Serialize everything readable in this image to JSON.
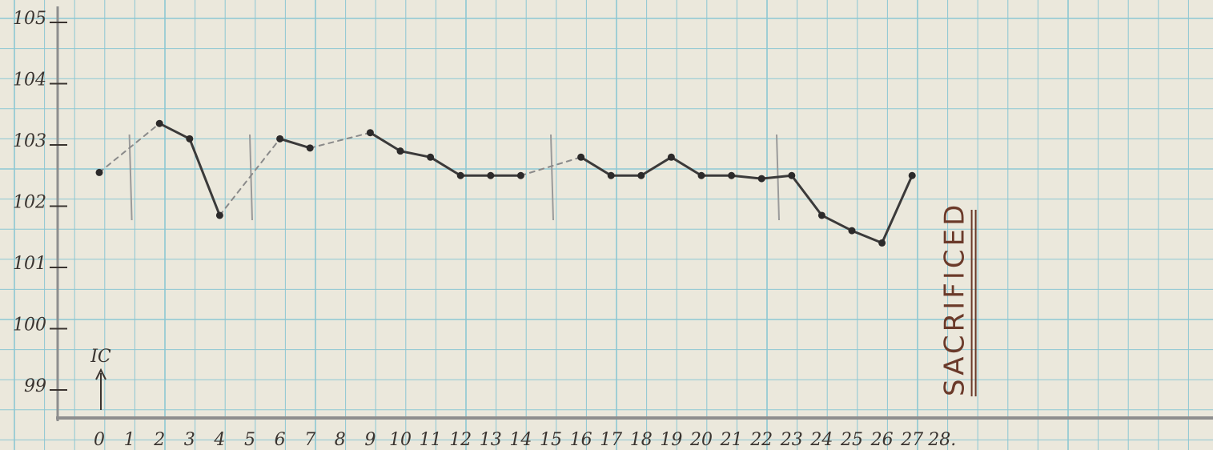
{
  "chart_data": {
    "type": "line",
    "title": "",
    "xlabel": "",
    "ylabel": "",
    "xlim": [
      -1,
      38.6
    ],
    "ylim": [
      98.5,
      105.2
    ],
    "grid": true,
    "x_ticks": [
      "0",
      "1",
      "2",
      "3",
      "4",
      "5",
      "6",
      "7",
      "8",
      "9",
      "10",
      "11",
      "12",
      "13",
      "14",
      "15",
      "16",
      "17",
      "18",
      "19",
      "20",
      "21",
      "22",
      "23",
      "24",
      "25",
      "26",
      "27",
      "28."
    ],
    "y_ticks": [
      {
        "value": 105,
        "label": "105"
      },
      {
        "value": 104,
        "label": "104"
      },
      {
        "value": 103,
        "label": "103"
      },
      {
        "value": 102,
        "label": "102"
      },
      {
        "value": 101,
        "label": "101"
      },
      {
        "value": 100,
        "label": "100"
      },
      {
        "value": 99,
        "label": "99"
      }
    ],
    "series": [
      {
        "points": [
          {
            "x": 0,
            "y": 102.55
          },
          {
            "x": 2,
            "y": 103.35
          },
          {
            "x": 3,
            "y": 103.1
          },
          {
            "x": 4,
            "y": 101.85
          },
          {
            "x": 6,
            "y": 103.1
          },
          {
            "x": 7,
            "y": 102.95
          },
          {
            "x": 9,
            "y": 103.2
          },
          {
            "x": 10,
            "y": 102.9
          },
          {
            "x": 11,
            "y": 102.8
          },
          {
            "x": 12,
            "y": 102.5
          },
          {
            "x": 13,
            "y": 102.5
          },
          {
            "x": 14,
            "y": 102.5
          },
          {
            "x": 16,
            "y": 102.8
          },
          {
            "x": 17,
            "y": 102.5
          },
          {
            "x": 18,
            "y": 102.5
          },
          {
            "x": 19,
            "y": 102.8
          },
          {
            "x": 20,
            "y": 102.5
          },
          {
            "x": 21,
            "y": 102.5
          },
          {
            "x": 22,
            "y": 102.45
          },
          {
            "x": 23,
            "y": 102.5
          },
          {
            "x": 24,
            "y": 101.85
          },
          {
            "x": 25,
            "y": 101.6
          },
          {
            "x": 26,
            "y": 101.4
          },
          {
            "x": 27,
            "y": 102.5
          }
        ],
        "dashed_segments": [
          [
            0,
            2
          ],
          [
            4,
            6
          ],
          [
            7,
            9
          ],
          [
            14,
            16
          ]
        ]
      }
    ],
    "vertical_marks": [
      1,
      5,
      15,
      22.5
    ],
    "annotations": {
      "marker_label": "IC",
      "marker_x": 0,
      "sacrificed_label": "SACRIFICED",
      "sacrificed_x": 28.5
    }
  },
  "colors": {
    "paper": "#ebe8dc",
    "grid": "#8cc7d3",
    "axis": "#8e8e8e",
    "line": "#3b3a3a",
    "dashed": "#8a8a8a",
    "ink": "#3a3430",
    "annotation": "#6b3a2a"
  }
}
